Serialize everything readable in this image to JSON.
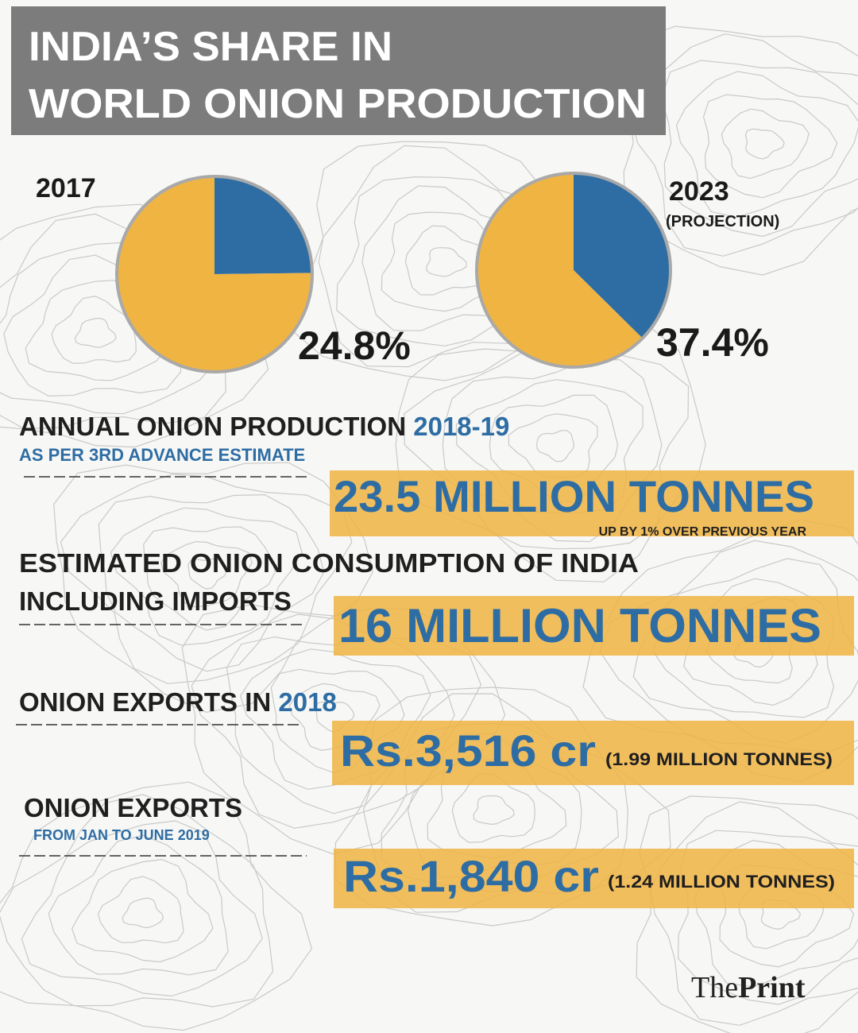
{
  "title": [
    "INDIA’S SHARE IN",
    "WORLD ONION PRODUCTION"
  ],
  "chart_data": [
    {
      "type": "pie",
      "title": "2017",
      "values": [
        24.8,
        75.2
      ],
      "value_labels": [
        "24.8%",
        null
      ],
      "colors": [
        "#2e6da4",
        "#f0b443"
      ]
    },
    {
      "type": "pie",
      "title": "2023",
      "subtitle": "(PROJECTION)",
      "values": [
        37.4,
        62.6
      ],
      "value_labels": [
        "37.4%",
        null
      ],
      "colors": [
        "#2e6da4",
        "#f0b443"
      ]
    }
  ],
  "stats": [
    {
      "heading": "ANNUAL ONION PRODUCTION",
      "highlight": "2018-19",
      "subheading": "AS PER 3RD ADVANCE ESTIMATE",
      "value": "23.5 MILLION TONNES",
      "note": "UP BY 1% OVER PREVIOUS YEAR"
    },
    {
      "heading": [
        "ESTIMATED ONION CONSUMPTION OF INDIA",
        "INCLUDING IMPORTS"
      ],
      "value": "16 MILLION TONNES"
    },
    {
      "heading": "ONION EXPORTS IN",
      "highlight": "2018",
      "value": "Rs.3,516 cr",
      "note": "(1.99 MILLION TONNES)"
    },
    {
      "heading": "ONION EXPORTS",
      "subheading": "FROM JAN TO JUNE 2019",
      "value": "Rs.1,840 cr",
      "note": "(1.24 MILLION TONNES)"
    }
  ],
  "logo": {
    "the": "The",
    "print": "Print"
  }
}
